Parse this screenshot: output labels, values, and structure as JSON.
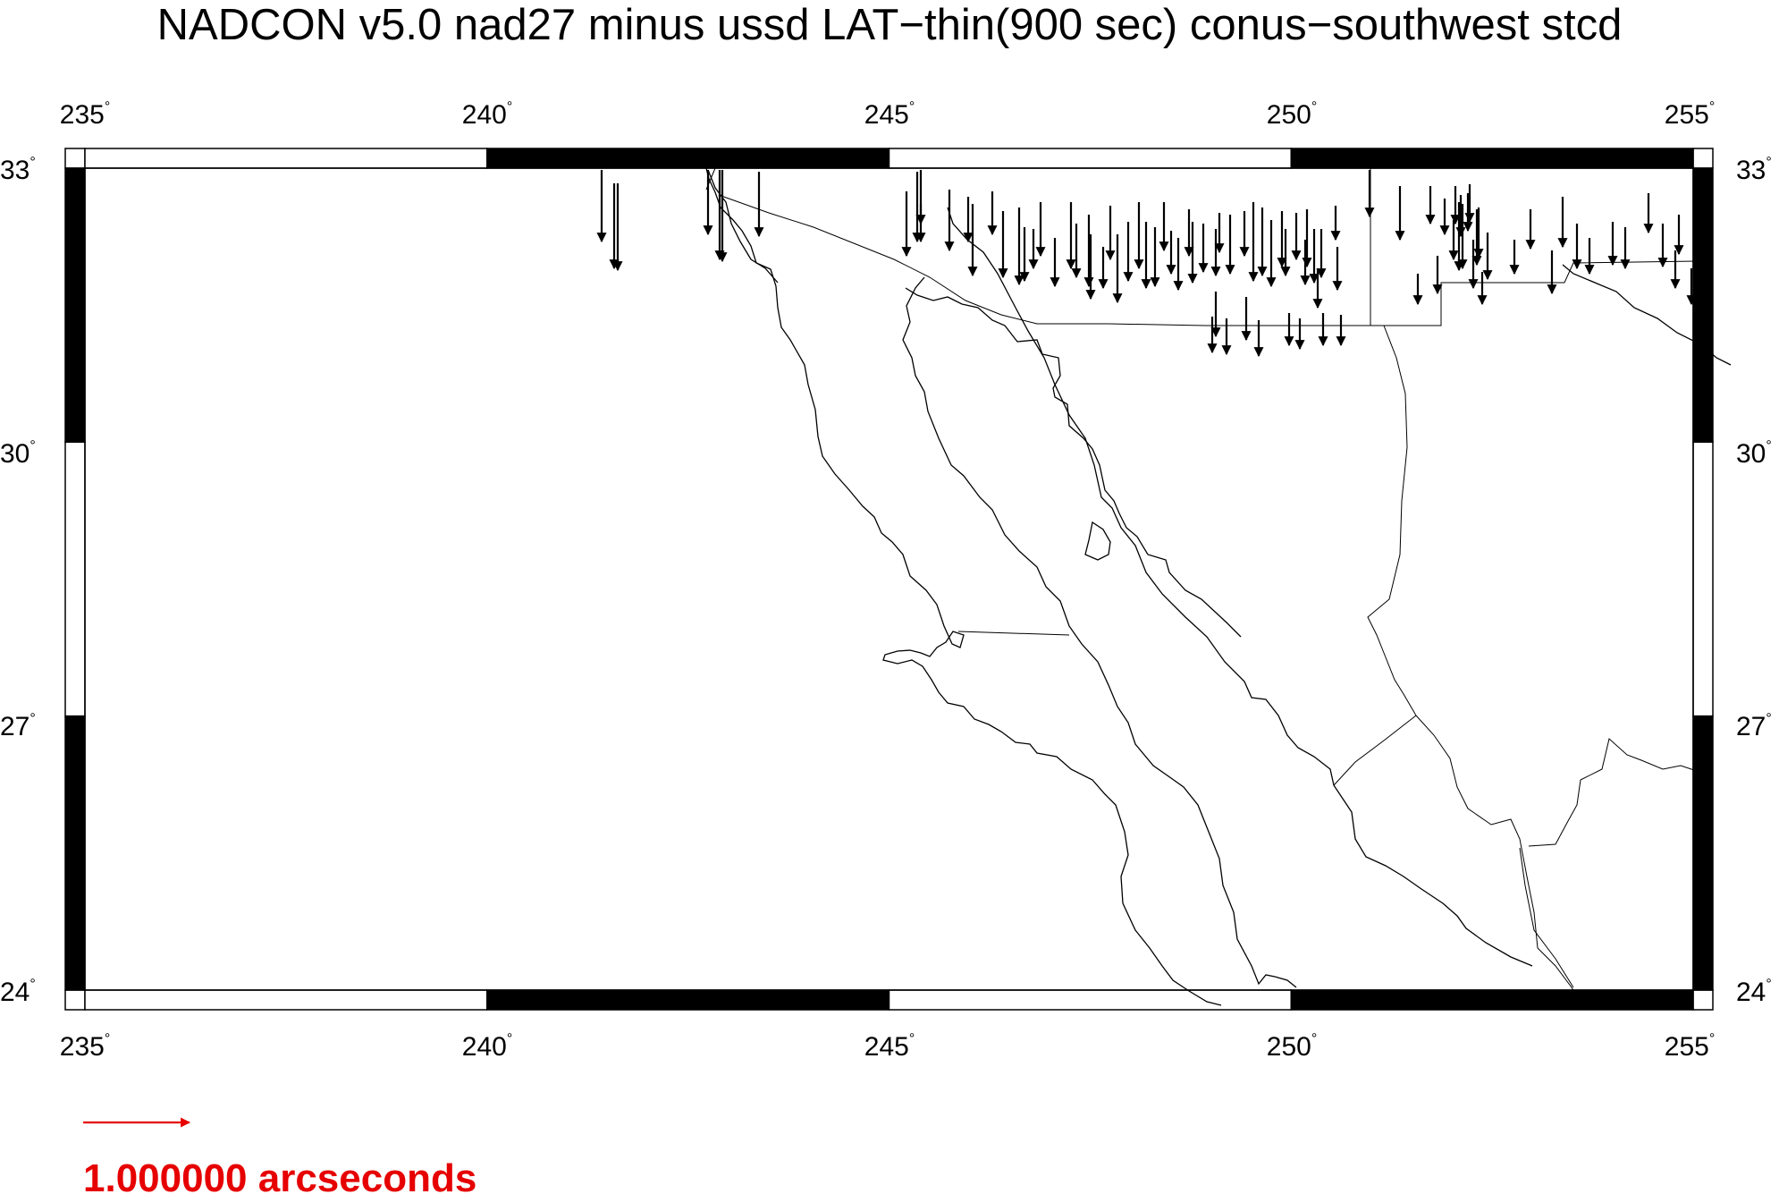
{
  "map": {
    "title": "NADCON v5.0 nad27 minus ussd LAT−thin(900 sec) conus−southwest stcd",
    "lon_range": [
      235,
      255
    ],
    "lat_range": [
      24,
      33
    ],
    "lon_ticks": [
      235,
      240,
      245,
      250,
      255
    ],
    "lat_ticks": [
      24,
      27,
      30,
      33
    ],
    "lon_tick_labels": [
      "235",
      "240",
      "245",
      "250",
      "255"
    ],
    "lat_tick_labels": [
      "24",
      "27",
      "30",
      "33"
    ],
    "degree_symbol": "°",
    "frame_style": "alternating black-white fancy frame",
    "vector_color": "#000000",
    "coastline_color": "#000000",
    "scale": {
      "label": "1.000000 arcseconds",
      "magnitude_arcsec": 1.0,
      "color": "#e60000"
    },
    "vectors_shown": "southward shift vectors along northern edge (US–Mexico border region)"
  }
}
